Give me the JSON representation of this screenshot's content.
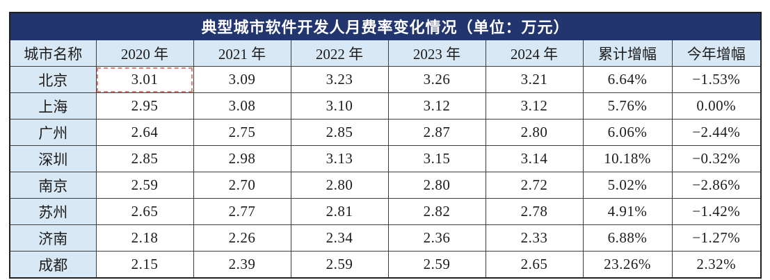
{
  "chart_data": {
    "type": "table",
    "title": "典型城市软件开发人月费率变化情况（单位：万元）",
    "columns": [
      "城市名称",
      "2020 年",
      "2021 年",
      "2022 年",
      "2023 年",
      "2024 年",
      "累计增幅",
      "今年增幅"
    ],
    "rows": [
      {
        "city": "北京",
        "cells": [
          "3.01",
          "3.09",
          "3.23",
          "3.26",
          "3.21",
          "6.64%",
          "−1.53%"
        ]
      },
      {
        "city": "上海",
        "cells": [
          "2.95",
          "3.08",
          "3.10",
          "3.12",
          "3.12",
          "5.76%",
          "0.00%"
        ]
      },
      {
        "city": "广州",
        "cells": [
          "2.64",
          "2.75",
          "2.85",
          "2.87",
          "2.80",
          "6.06%",
          "−2.44%"
        ]
      },
      {
        "city": "深圳",
        "cells": [
          "2.85",
          "2.98",
          "3.13",
          "3.15",
          "3.14",
          "10.18%",
          "−0.32%"
        ]
      },
      {
        "city": "南京",
        "cells": [
          "2.59",
          "2.70",
          "2.80",
          "2.80",
          "2.72",
          "5.02%",
          "−2.86%"
        ]
      },
      {
        "city": "苏州",
        "cells": [
          "2.65",
          "2.77",
          "2.81",
          "2.82",
          "2.78",
          "4.91%",
          "−1.42%"
        ]
      },
      {
        "city": "济南",
        "cells": [
          "2.18",
          "2.26",
          "2.34",
          "2.36",
          "2.33",
          "6.88%",
          "−1.27%"
        ]
      },
      {
        "city": "成都",
        "cells": [
          "2.15",
          "2.39",
          "2.59",
          "2.59",
          "2.65",
          "23.26%",
          "2.32%"
        ]
      }
    ]
  },
  "selection": {
    "city": "北京",
    "column": "2020 年",
    "value": "3.01",
    "border_color": "#dd8076"
  },
  "colors": {
    "title_bg": "#23356e",
    "title_text": "#ffffff",
    "header_bg": "#d9e8f5",
    "grid": "#3c3c3c",
    "text": "#1c1c1c"
  }
}
